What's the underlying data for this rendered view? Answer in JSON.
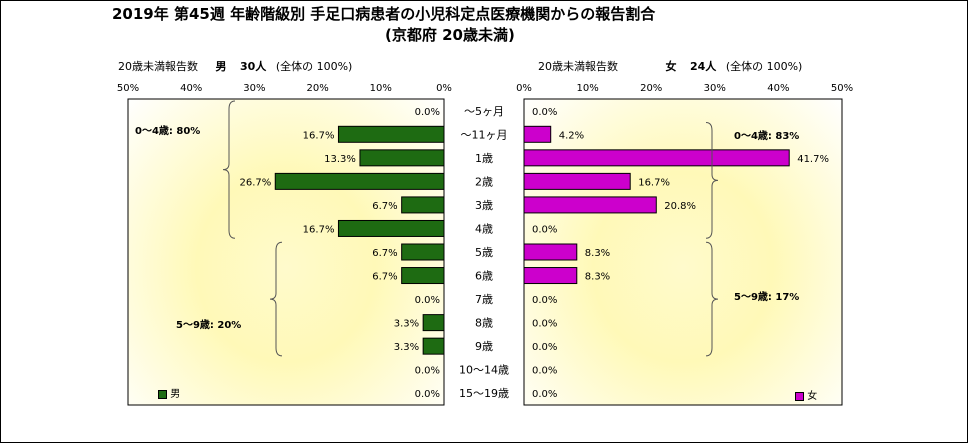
{
  "title_line1": "2019年 第45週 年齢階級別 手足口病患者の小児科定点医療機関からの報告割合",
  "title_line2": "(京都府 20歳未満)",
  "left_panel": {
    "caption_prefix": "20歳未満報告数",
    "caption_sex": "男",
    "caption_count": "30人",
    "caption_total": "(全体の 100%)",
    "group_a": "0～4歳: 80%",
    "group_b": "5～9歳: 20%",
    "legend": "男"
  },
  "right_panel": {
    "caption_prefix": "20歳未満報告数",
    "caption_sex": "女",
    "caption_count": "24人",
    "caption_total": "(全体の 100%)",
    "group_a": "0～4歳: 83%",
    "group_b": "5～9歳: 17%",
    "legend": "女"
  },
  "colors": {
    "male": "#1e6b12",
    "female": "#cc00cc",
    "plot_fill": "#fff9b8"
  },
  "chart_data": [
    {
      "type": "bar",
      "orientation": "horizontal",
      "direction": "right-to-left",
      "title": "男",
      "categories": [
        "～5ヶ月",
        "～11ヶ月",
        "1歳",
        "2歳",
        "3歳",
        "4歳",
        "5歳",
        "6歳",
        "7歳",
        "8歳",
        "9歳",
        "10～14歳",
        "15～19歳"
      ],
      "series": [
        {
          "name": "男",
          "values": [
            0.0,
            16.7,
            13.3,
            26.7,
            6.7,
            16.7,
            6.7,
            6.7,
            0.0,
            3.3,
            3.3,
            0.0,
            0.0
          ]
        }
      ],
      "value_labels": [
        "0.0%",
        "16.7%",
        "13.3%",
        "26.7%",
        "6.7%",
        "16.7%",
        "6.7%",
        "6.7%",
        "0.0%",
        "3.3%",
        "3.3%",
        "0.0%",
        "0.0%"
      ],
      "xlim": [
        0,
        50
      ],
      "xticks": [
        "50%",
        "40%",
        "30%",
        "20%",
        "10%",
        "0%"
      ],
      "grid": false,
      "legend_position": "bottom-left"
    },
    {
      "type": "bar",
      "orientation": "horizontal",
      "direction": "left-to-right",
      "title": "女",
      "categories": [
        "～5ヶ月",
        "～11ヶ月",
        "1歳",
        "2歳",
        "3歳",
        "4歳",
        "5歳",
        "6歳",
        "7歳",
        "8歳",
        "9歳",
        "10～14歳",
        "15～19歳"
      ],
      "series": [
        {
          "name": "女",
          "values": [
            0.0,
            4.2,
            41.7,
            16.7,
            20.8,
            0.0,
            8.3,
            8.3,
            0.0,
            0.0,
            0.0,
            0.0,
            0.0
          ]
        }
      ],
      "value_labels": [
        "0.0%",
        "4.2%",
        "41.7%",
        "16.7%",
        "20.8%",
        "0.0%",
        "8.3%",
        "8.3%",
        "0.0%",
        "0.0%",
        "0.0%",
        "0.0%",
        "0.0%"
      ],
      "xlim": [
        0,
        50
      ],
      "xticks": [
        "0%",
        "10%",
        "20%",
        "30%",
        "40%",
        "50%"
      ],
      "grid": false,
      "legend_position": "bottom-right"
    }
  ]
}
